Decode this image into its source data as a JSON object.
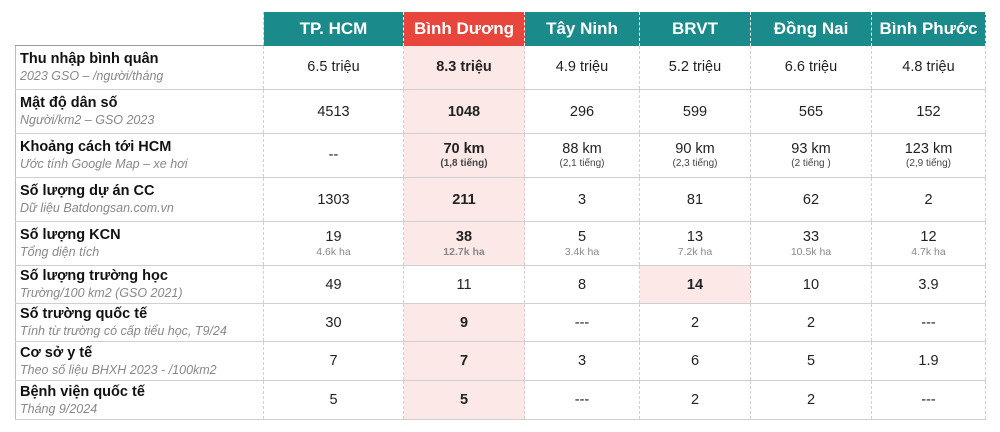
{
  "headers": [
    "TP. HCM",
    "Bình Dương",
    "Tây Ninh",
    "BRVT",
    "Đồng Nai",
    "Bình Phước"
  ],
  "colors": {
    "header_bg": "#1a8a8a",
    "highlight_header": "#e8453c",
    "highlight_cell": "#fde8e8"
  },
  "rows": [
    {
      "title": "Thu nhập bình quân",
      "subtitle": "2023 GSO – /người/tháng",
      "cells": [
        {
          "v": "6.5 triệu"
        },
        {
          "v": "8.3 triệu"
        },
        {
          "v": "4.9 triệu"
        },
        {
          "v": "5.2 triệu"
        },
        {
          "v": "6.6 triệu"
        },
        {
          "v": "4.8 triệu"
        }
      ]
    },
    {
      "title": "Mật độ dân số",
      "subtitle": "Người/km2 – GSO 2023",
      "cells": [
        {
          "v": "4513"
        },
        {
          "v": "1048"
        },
        {
          "v": "296"
        },
        {
          "v": "599"
        },
        {
          "v": "565"
        },
        {
          "v": "152"
        }
      ]
    },
    {
      "title": "Khoảng cách tới HCM",
      "subtitle": "Ước tính Google Map – xe hơi",
      "cells": [
        {
          "v": "--",
          "s": ""
        },
        {
          "v": "70 km",
          "s": "(1,8 tiếng)"
        },
        {
          "v": "88 km",
          "s": "(2,1 tiếng)"
        },
        {
          "v": "90 km",
          "s": "(2,3 tiếng)"
        },
        {
          "v": "93 km",
          "s": "(2 tiếng )"
        },
        {
          "v": "123 km",
          "s": "(2,9 tiếng)"
        }
      ]
    },
    {
      "title": "Số lượng dự án CC",
      "subtitle": "Dữ liệu Batdongsan.com.vn",
      "cells": [
        {
          "v": "1303"
        },
        {
          "v": "211"
        },
        {
          "v": "3"
        },
        {
          "v": "81"
        },
        {
          "v": "62"
        },
        {
          "v": "2"
        }
      ]
    },
    {
      "title": "Số lượng KCN",
      "subtitle": "Tổng diện tích",
      "cells": [
        {
          "v": "19",
          "s": "4.6k ha"
        },
        {
          "v": "38",
          "s": "12.7k ha"
        },
        {
          "v": "5",
          "s": "3.4k ha"
        },
        {
          "v": "13",
          "s": "7.2k ha"
        },
        {
          "v": "33",
          "s": "10.5k ha"
        },
        {
          "v": "12",
          "s": "4.7k ha"
        }
      ]
    },
    {
      "title": "Số lượng trường học",
      "subtitle": "Trường/100 km2 (GSO 2021)",
      "cells": [
        {
          "v": "49"
        },
        {
          "v": "11"
        },
        {
          "v": "8"
        },
        {
          "v": "14"
        },
        {
          "v": "10"
        },
        {
          "v": "3.9"
        }
      ]
    },
    {
      "title": "Số trường quốc tế",
      "subtitle": "Tính từ trường có cấp tiểu học, T9/24",
      "cells": [
        {
          "v": "30"
        },
        {
          "v": "9"
        },
        {
          "v": "---"
        },
        {
          "v": "2"
        },
        {
          "v": "2"
        },
        {
          "v": "---"
        }
      ]
    },
    {
      "title": "Cơ sở y tế",
      "subtitle": "Theo số liệu BHXH 2023 - /100km2",
      "cells": [
        {
          "v": "7"
        },
        {
          "v": "7"
        },
        {
          "v": "3"
        },
        {
          "v": "6"
        },
        {
          "v": "5"
        },
        {
          "v": "1.9"
        }
      ]
    },
    {
      "title": "Bệnh viện quốc tế",
      "subtitle": "Tháng 9/2024",
      "cells": [
        {
          "v": "5"
        },
        {
          "v": "5"
        },
        {
          "v": "---"
        },
        {
          "v": "2"
        },
        {
          "v": "2"
        },
        {
          "v": "---"
        }
      ]
    }
  ]
}
